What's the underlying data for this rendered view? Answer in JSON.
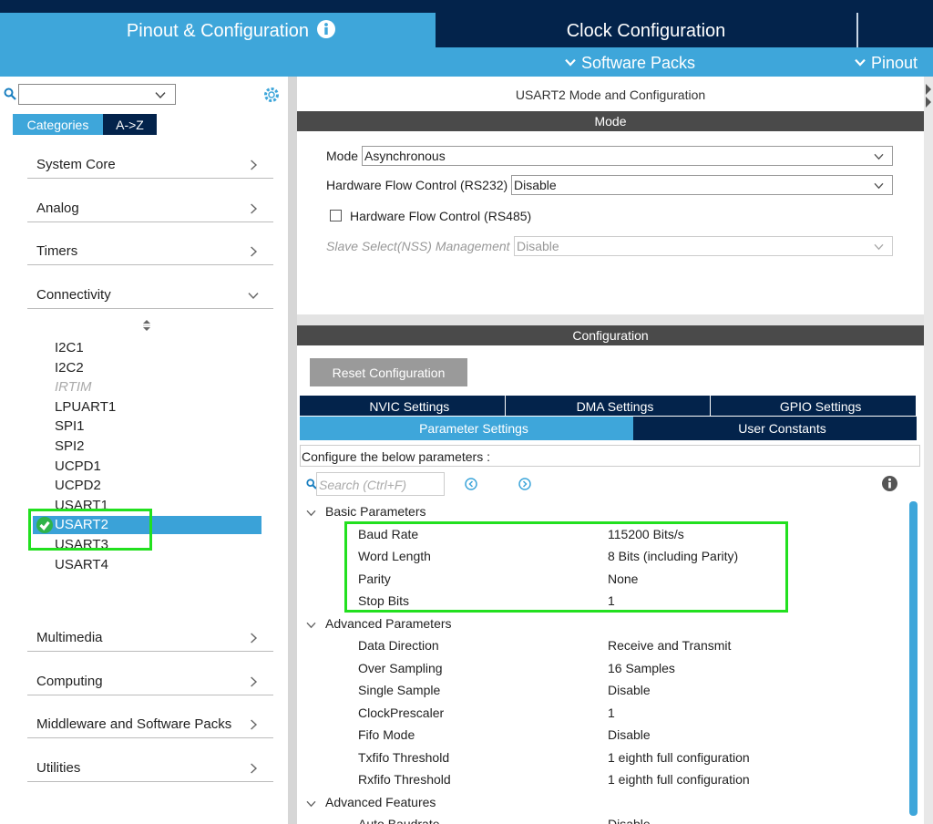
{
  "header": {
    "tabs": [
      {
        "label": "Pinout & Configuration",
        "active": true
      },
      {
        "label": "Clock Configuration",
        "active": false
      }
    ],
    "menus": [
      "Software Packs",
      "Pinout"
    ]
  },
  "sidebar": {
    "tabs": [
      "Categories",
      "A->Z"
    ],
    "categories_top": [
      {
        "name": "System Core",
        "expanded": false
      },
      {
        "name": "Analog",
        "expanded": false
      },
      {
        "name": "Timers",
        "expanded": false
      },
      {
        "name": "Connectivity",
        "expanded": true
      }
    ],
    "peripherals": [
      {
        "name": "I2C1"
      },
      {
        "name": "I2C2"
      },
      {
        "name": "IRTIM",
        "disabled": true
      },
      {
        "name": "LPUART1"
      },
      {
        "name": "SPI1"
      },
      {
        "name": "SPI2"
      },
      {
        "name": "UCPD1"
      },
      {
        "name": "UCPD2"
      },
      {
        "name": "USART1"
      },
      {
        "name": "USART2",
        "selected": true
      },
      {
        "name": "USART3"
      },
      {
        "name": "USART4"
      }
    ],
    "categories_bottom": [
      {
        "name": "Multimedia",
        "expanded": false
      },
      {
        "name": "Computing",
        "expanded": false
      },
      {
        "name": "Middleware and Software Packs",
        "expanded": false
      },
      {
        "name": "Utilities",
        "expanded": false
      }
    ]
  },
  "panel": {
    "title": "USART2 Mode and Configuration",
    "mode_header": "Mode",
    "mode_fields": [
      {
        "label": "Mode",
        "value": "Asynchronous"
      },
      {
        "label": "Hardware Flow Control (RS232)",
        "value": "Disable"
      }
    ],
    "checkbox": "Hardware Flow Control (RS485)",
    "disabled_field": {
      "label": "Slave Select(NSS) Management",
      "value": "Disable"
    },
    "config_header": "Configuration",
    "reset_button": "Reset Configuration",
    "settings_tabs": [
      "NVIC Settings",
      "DMA Settings",
      "GPIO Settings"
    ],
    "settings_tabs_2": [
      {
        "label": "Parameter Settings",
        "active": true
      },
      {
        "label": "User Constants",
        "active": false
      }
    ],
    "hint": "Configure the below parameters :",
    "search_placeholder": "Search (Ctrl+F)",
    "groups": [
      {
        "name": "Basic Parameters",
        "rows": [
          [
            "Baud Rate",
            "115200 Bits/s"
          ],
          [
            "Word Length",
            "8 Bits (including Parity)"
          ],
          [
            "Parity",
            "None"
          ],
          [
            "Stop Bits",
            "1"
          ]
        ]
      },
      {
        "name": "Advanced Parameters",
        "rows": [
          [
            "Data Direction",
            "Receive and Transmit"
          ],
          [
            "Over Sampling",
            "16 Samples"
          ],
          [
            "Single Sample",
            "Disable"
          ],
          [
            "ClockPrescaler",
            "1"
          ],
          [
            "Fifo Mode",
            "Disable"
          ],
          [
            "Txfifo Threshold",
            "1 eighth full configuration"
          ],
          [
            "Rxfifo Threshold",
            "1 eighth full configuration"
          ]
        ]
      },
      {
        "name": "Advanced Features",
        "rows": [
          [
            "Auto Baudrate",
            "Disable"
          ]
        ]
      }
    ]
  }
}
